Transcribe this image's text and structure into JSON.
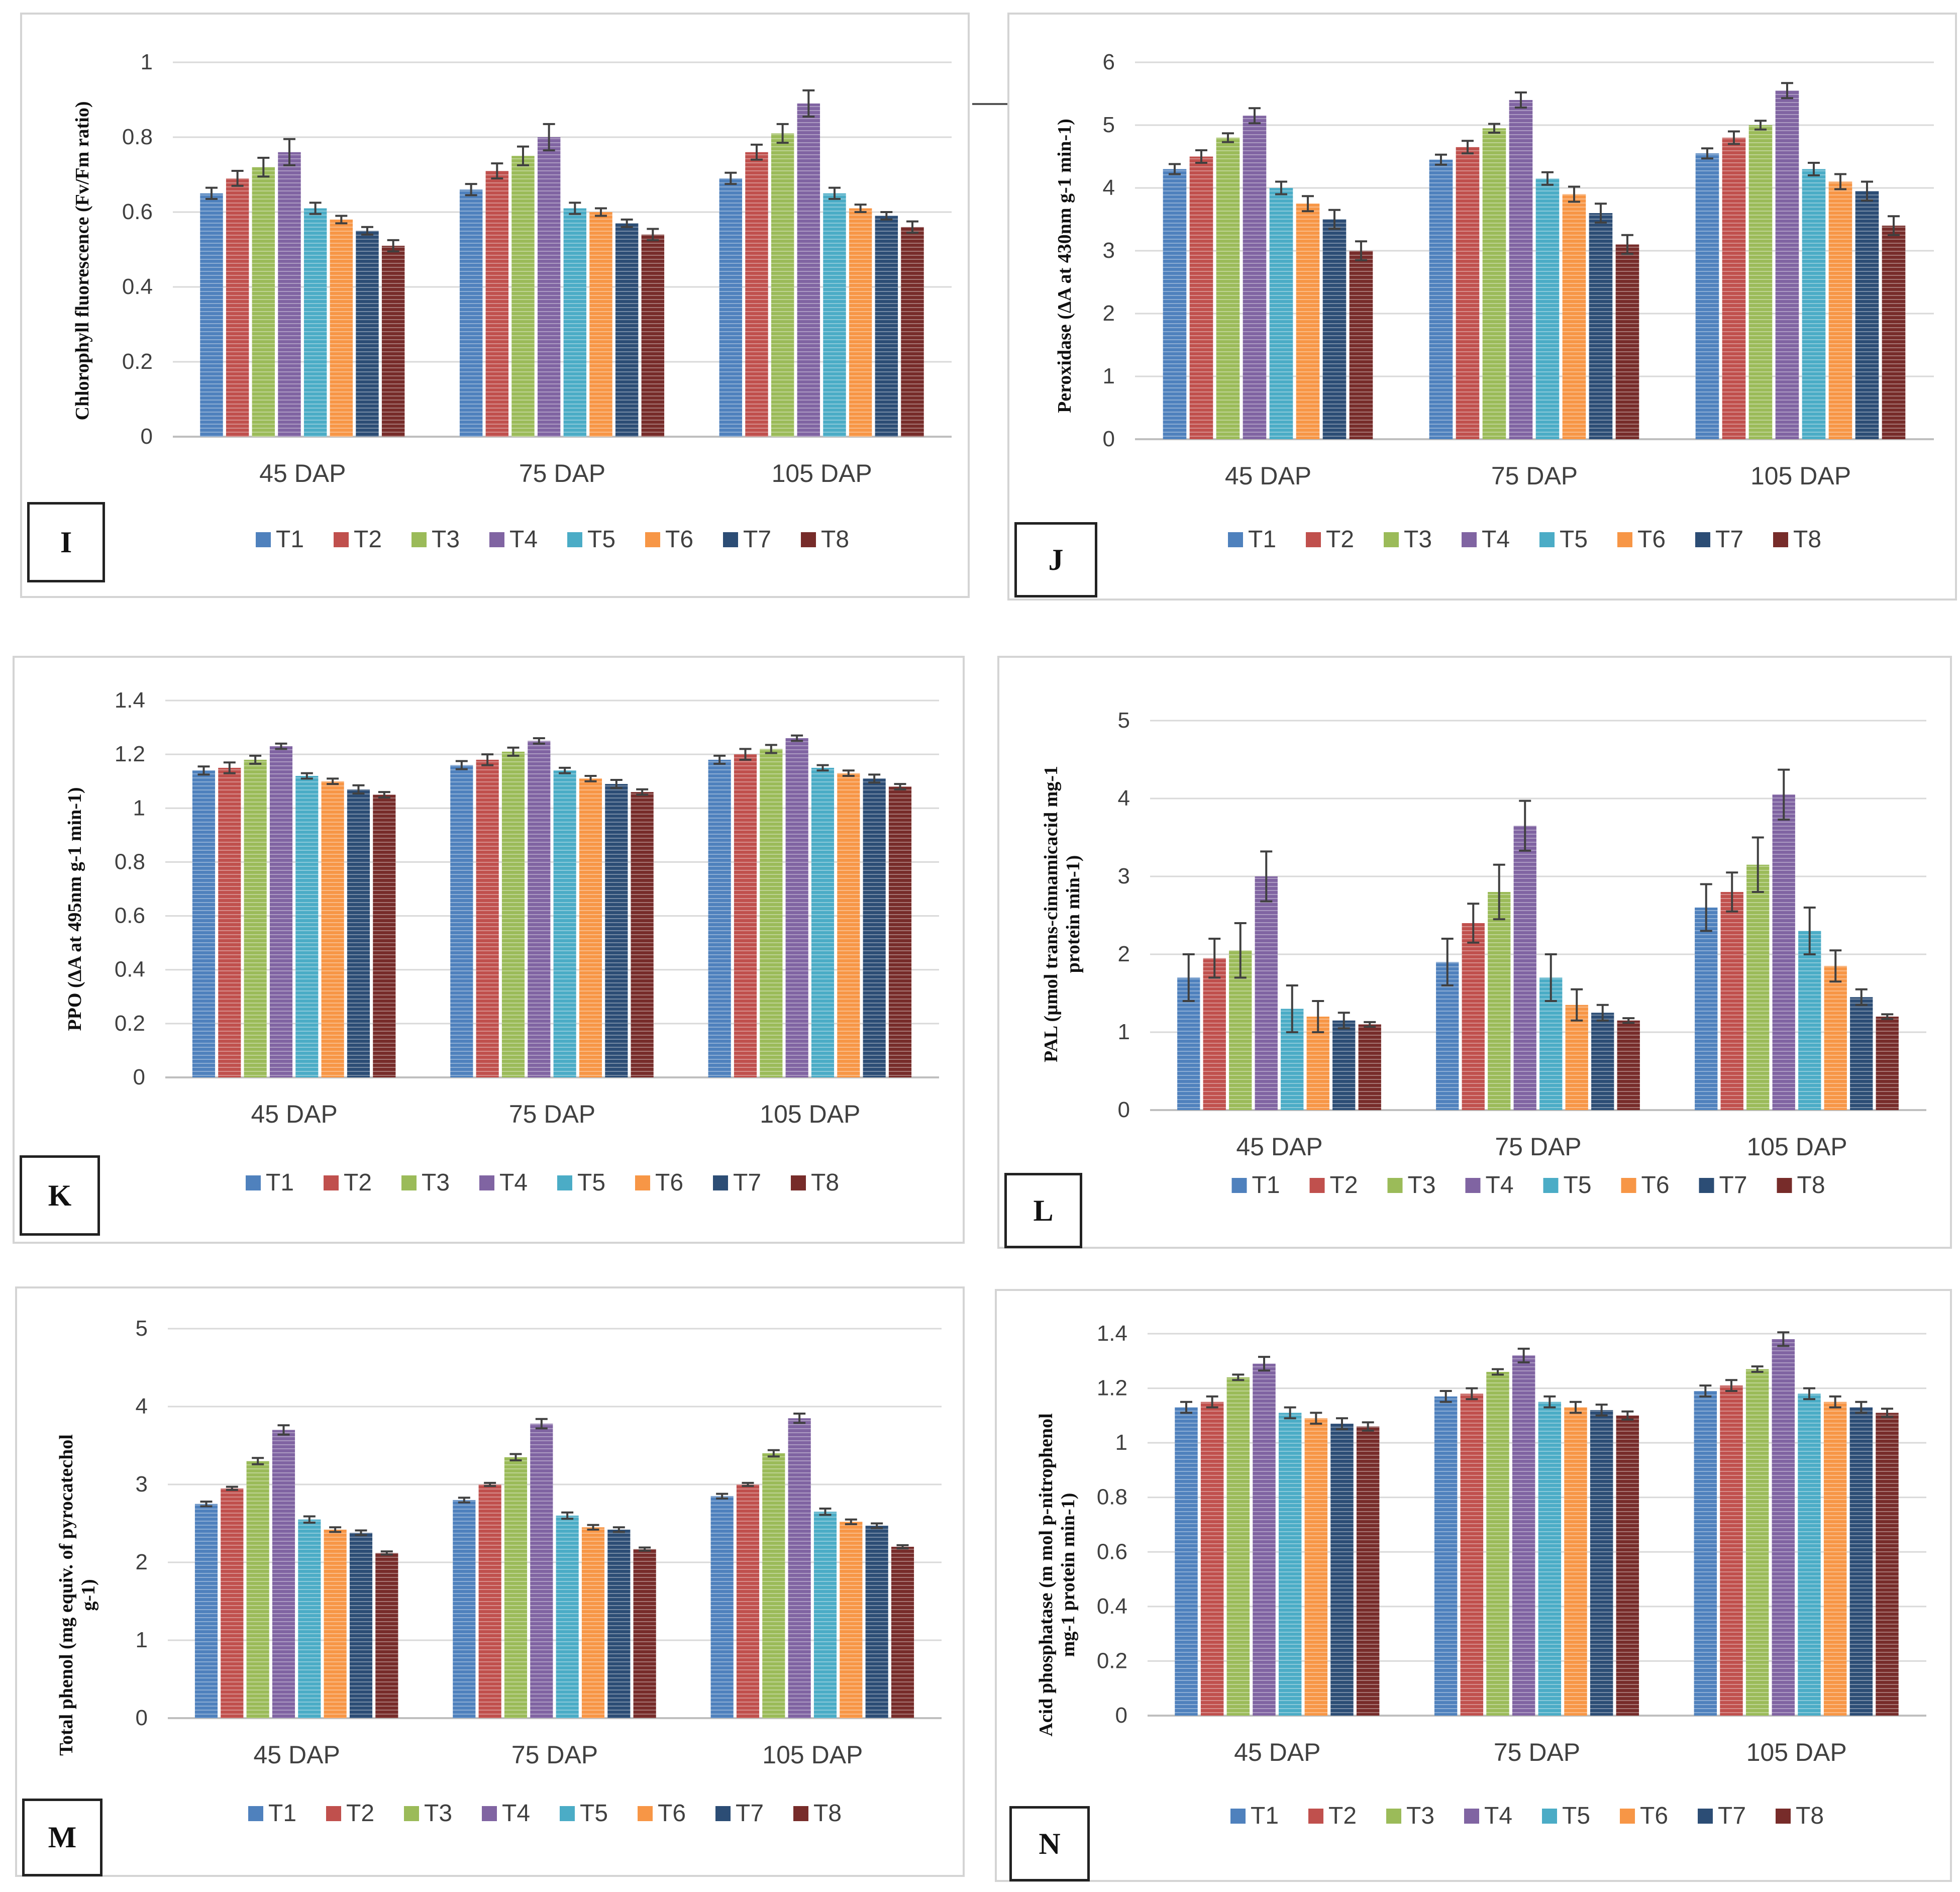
{
  "palette": {
    "T1": "#4f81bd",
    "T2": "#c0504d",
    "T3": "#9bbb59",
    "T4": "#8064a2",
    "T5": "#4bacc6",
    "T6": "#f79646",
    "T7": "#2c4d75",
    "T8": "#772c2a"
  },
  "chart_data": [
    {
      "panel": "I",
      "type": "bar",
      "ylabel": "Chlorophyll fluorescence (Fv/Fm ratio)",
      "ylabel_lines": [
        "Chlorophyll fluorescence (Fv/Fm ratio)"
      ],
      "ylim": [
        0,
        1
      ],
      "yticks": [
        "0",
        "0.2",
        "0.4",
        "0.6",
        "0.8",
        "1"
      ],
      "categories": [
        "45 DAP",
        "75 DAP",
        "105 DAP"
      ],
      "series": [
        {
          "name": "T1",
          "values": [
            0.65,
            0.66,
            0.69
          ],
          "errors": [
            0.015,
            0.015,
            0.015
          ]
        },
        {
          "name": "T2",
          "values": [
            0.69,
            0.71,
            0.76
          ],
          "errors": [
            0.02,
            0.02,
            0.02
          ]
        },
        {
          "name": "T3",
          "values": [
            0.72,
            0.75,
            0.81
          ],
          "errors": [
            0.025,
            0.025,
            0.025
          ]
        },
        {
          "name": "T4",
          "values": [
            0.76,
            0.8,
            0.89
          ],
          "errors": [
            0.035,
            0.035,
            0.035
          ]
        },
        {
          "name": "T5",
          "values": [
            0.61,
            0.61,
            0.65
          ],
          "errors": [
            0.015,
            0.015,
            0.015
          ]
        },
        {
          "name": "T6",
          "values": [
            0.58,
            0.6,
            0.61
          ],
          "errors": [
            0.01,
            0.01,
            0.01
          ]
        },
        {
          "name": "T7",
          "values": [
            0.55,
            0.57,
            0.59
          ],
          "errors": [
            0.01,
            0.01,
            0.01
          ]
        },
        {
          "name": "T8",
          "values": [
            0.51,
            0.54,
            0.56
          ],
          "errors": [
            0.015,
            0.015,
            0.015
          ]
        }
      ]
    },
    {
      "panel": "J",
      "type": "bar",
      "ylabel": "Peroxidase (ΔA at 430nm g-1 min-1)",
      "ylabel_lines": [
        "Peroxidase (ΔA at 430nm g-1 min-1)"
      ],
      "ylim": [
        0,
        6
      ],
      "yticks": [
        "0",
        "1",
        "2",
        "3",
        "4",
        "5",
        "6"
      ],
      "categories": [
        "45 DAP",
        "75 DAP",
        "105 DAP"
      ],
      "series": [
        {
          "name": "T1",
          "values": [
            4.3,
            4.45,
            4.55
          ],
          "errors": [
            0.08,
            0.08,
            0.08
          ]
        },
        {
          "name": "T2",
          "values": [
            4.5,
            4.65,
            4.8
          ],
          "errors": [
            0.1,
            0.1,
            0.1
          ]
        },
        {
          "name": "T3",
          "values": [
            4.8,
            4.95,
            5.0
          ],
          "errors": [
            0.07,
            0.07,
            0.07
          ]
        },
        {
          "name": "T4",
          "values": [
            5.15,
            5.4,
            5.55
          ],
          "errors": [
            0.12,
            0.12,
            0.12
          ]
        },
        {
          "name": "T5",
          "values": [
            4.0,
            4.15,
            4.3
          ],
          "errors": [
            0.1,
            0.1,
            0.1
          ]
        },
        {
          "name": "T6",
          "values": [
            3.75,
            3.9,
            4.1
          ],
          "errors": [
            0.12,
            0.12,
            0.12
          ]
        },
        {
          "name": "T7",
          "values": [
            3.5,
            3.6,
            3.95
          ],
          "errors": [
            0.15,
            0.15,
            0.15
          ]
        },
        {
          "name": "T8",
          "values": [
            3.0,
            3.1,
            3.4
          ],
          "errors": [
            0.15,
            0.15,
            0.15
          ]
        }
      ]
    },
    {
      "panel": "K",
      "type": "bar",
      "ylabel": "PPO (ΔA at 495nm g-1 min-1)",
      "ylabel_lines": [
        "PPO (ΔA at 495nm g-1 min-1)"
      ],
      "ylim": [
        0,
        1.4
      ],
      "yticks": [
        "0",
        "0.2",
        "0.4",
        "0.6",
        "0.8",
        "1",
        "1.2",
        "1.4"
      ],
      "categories": [
        "45 DAP",
        "75 DAP",
        "105 DAP"
      ],
      "series": [
        {
          "name": "T1",
          "values": [
            1.14,
            1.16,
            1.18
          ],
          "errors": [
            0.015,
            0.015,
            0.015
          ]
        },
        {
          "name": "T2",
          "values": [
            1.15,
            1.18,
            1.2
          ],
          "errors": [
            0.02,
            0.02,
            0.02
          ]
        },
        {
          "name": "T3",
          "values": [
            1.18,
            1.21,
            1.22
          ],
          "errors": [
            0.015,
            0.015,
            0.015
          ]
        },
        {
          "name": "T4",
          "values": [
            1.23,
            1.25,
            1.26
          ],
          "errors": [
            0.01,
            0.01,
            0.01
          ]
        },
        {
          "name": "T5",
          "values": [
            1.12,
            1.14,
            1.15
          ],
          "errors": [
            0.01,
            0.01,
            0.01
          ]
        },
        {
          "name": "T6",
          "values": [
            1.1,
            1.11,
            1.13
          ],
          "errors": [
            0.01,
            0.01,
            0.01
          ]
        },
        {
          "name": "T7",
          "values": [
            1.07,
            1.09,
            1.11
          ],
          "errors": [
            0.015,
            0.015,
            0.015
          ]
        },
        {
          "name": "T8",
          "values": [
            1.05,
            1.06,
            1.08
          ],
          "errors": [
            0.01,
            0.01,
            0.01
          ]
        }
      ]
    },
    {
      "panel": "L",
      "type": "bar",
      "ylabel": "PAL (µmol trans-cinnamicacid mg-1 protein min-1)",
      "ylabel_lines": [
        "PAL (µmol trans-cinnamicacid mg-1",
        "protein min-1)"
      ],
      "ylim": [
        0,
        5
      ],
      "yticks": [
        "0",
        "1",
        "2",
        "3",
        "4",
        "5"
      ],
      "categories": [
        "45 DAP",
        "75 DAP",
        "105 DAP"
      ],
      "series": [
        {
          "name": "T1",
          "values": [
            1.7,
            1.9,
            2.6
          ],
          "errors": [
            0.3,
            0.3,
            0.3
          ]
        },
        {
          "name": "T2",
          "values": [
            1.95,
            2.4,
            2.8
          ],
          "errors": [
            0.25,
            0.25,
            0.25
          ]
        },
        {
          "name": "T3",
          "values": [
            2.05,
            2.8,
            3.15
          ],
          "errors": [
            0.35,
            0.35,
            0.35
          ]
        },
        {
          "name": "T4",
          "values": [
            3.0,
            3.65,
            4.05
          ],
          "errors": [
            0.32,
            0.32,
            0.32
          ]
        },
        {
          "name": "T5",
          "values": [
            1.3,
            1.7,
            2.3
          ],
          "errors": [
            0.3,
            0.3,
            0.3
          ]
        },
        {
          "name": "T6",
          "values": [
            1.2,
            1.35,
            1.85
          ],
          "errors": [
            0.2,
            0.2,
            0.2
          ]
        },
        {
          "name": "T7",
          "values": [
            1.15,
            1.25,
            1.45
          ],
          "errors": [
            0.1,
            0.1,
            0.1
          ]
        },
        {
          "name": "T8",
          "values": [
            1.1,
            1.15,
            1.2
          ],
          "errors": [
            0.03,
            0.03,
            0.03
          ]
        }
      ]
    },
    {
      "panel": "M",
      "type": "bar",
      "ylabel": "Total phenol (mg equiv. of pyrocatechol g-1)",
      "ylabel_lines": [
        "Total phenol (mg equiv. of pyrocatechol",
        "g-1)"
      ],
      "ylim": [
        0,
        5
      ],
      "yticks": [
        "0",
        "1",
        "2",
        "3",
        "4",
        "5"
      ],
      "categories": [
        "45 DAP",
        "75 DAP",
        "105 DAP"
      ],
      "series": [
        {
          "name": "T1",
          "values": [
            2.75,
            2.8,
            2.85
          ],
          "errors": [
            0.03,
            0.03,
            0.03
          ]
        },
        {
          "name": "T2",
          "values": [
            2.95,
            3.0,
            3.0
          ],
          "errors": [
            0.02,
            0.02,
            0.02
          ]
        },
        {
          "name": "T3",
          "values": [
            3.3,
            3.35,
            3.4
          ],
          "errors": [
            0.04,
            0.04,
            0.04
          ]
        },
        {
          "name": "T4",
          "values": [
            3.7,
            3.78,
            3.85
          ],
          "errors": [
            0.06,
            0.06,
            0.06
          ]
        },
        {
          "name": "T5",
          "values": [
            2.55,
            2.6,
            2.65
          ],
          "errors": [
            0.04,
            0.04,
            0.04
          ]
        },
        {
          "name": "T6",
          "values": [
            2.42,
            2.45,
            2.52
          ],
          "errors": [
            0.03,
            0.03,
            0.03
          ]
        },
        {
          "name": "T7",
          "values": [
            2.38,
            2.42,
            2.47
          ],
          "errors": [
            0.03,
            0.03,
            0.03
          ]
        },
        {
          "name": "T8",
          "values": [
            2.12,
            2.17,
            2.2
          ],
          "errors": [
            0.02,
            0.02,
            0.02
          ]
        }
      ]
    },
    {
      "panel": "N",
      "type": "bar",
      "ylabel": "Acid phosphatase (m mol p-nitrophenol mg-1 protein min-1)",
      "ylabel_lines": [
        "Acid phosphatase (m mol p-nitrophenol",
        "mg-1 protein min-1)"
      ],
      "ylim": [
        0,
        1.4
      ],
      "yticks": [
        "0",
        "0.2",
        "0.4",
        "0.6",
        "0.8",
        "1",
        "1.2",
        "1.4"
      ],
      "categories": [
        "45 DAP",
        "75 DAP",
        "105 DAP"
      ],
      "series": [
        {
          "name": "T1",
          "values": [
            1.13,
            1.17,
            1.19
          ],
          "errors": [
            0.02,
            0.02,
            0.02
          ]
        },
        {
          "name": "T2",
          "values": [
            1.15,
            1.18,
            1.21
          ],
          "errors": [
            0.02,
            0.02,
            0.02
          ]
        },
        {
          "name": "T3",
          "values": [
            1.24,
            1.26,
            1.27
          ],
          "errors": [
            0.01,
            0.01,
            0.01
          ]
        },
        {
          "name": "T4",
          "values": [
            1.29,
            1.32,
            1.38
          ],
          "errors": [
            0.025,
            0.025,
            0.025
          ]
        },
        {
          "name": "T5",
          "values": [
            1.11,
            1.15,
            1.18
          ],
          "errors": [
            0.02,
            0.02,
            0.02
          ]
        },
        {
          "name": "T6",
          "values": [
            1.09,
            1.13,
            1.15
          ],
          "errors": [
            0.02,
            0.02,
            0.02
          ]
        },
        {
          "name": "T7",
          "values": [
            1.07,
            1.12,
            1.13
          ],
          "errors": [
            0.02,
            0.02,
            0.02
          ]
        },
        {
          "name": "T8",
          "values": [
            1.06,
            1.1,
            1.11
          ],
          "errors": [
            0.015,
            0.015,
            0.015
          ]
        }
      ]
    }
  ]
}
